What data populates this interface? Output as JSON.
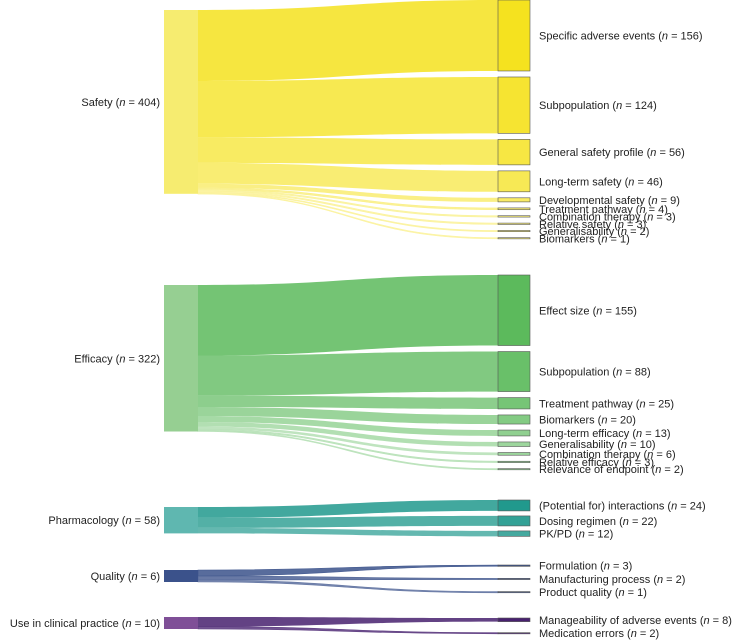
{
  "chart_data": {
    "type": "sankey",
    "title": "",
    "categories": [
      {
        "name": "Safety",
        "n": 404,
        "color": "#f5e21f",
        "source_color": "#f6ec70",
        "children": [
          {
            "name": "Specific adverse events",
            "n": 156
          },
          {
            "name": "Subpopulation",
            "n": 124
          },
          {
            "name": "General safety profile",
            "n": 56
          },
          {
            "name": "Long-term safety",
            "n": 46
          },
          {
            "name": "Developmental safety",
            "n": 9
          },
          {
            "name": "Treatment pathway",
            "n": 4
          },
          {
            "name": "Combination therapy",
            "n": 3
          },
          {
            "name": "Relative safety",
            "n": 3
          },
          {
            "name": "Generalisability",
            "n": 2
          },
          {
            "name": "Biomarkers",
            "n": 1
          }
        ]
      },
      {
        "name": "Efficacy",
        "n": 322,
        "color": "#5cba5c",
        "source_color": "#96cf92",
        "children": [
          {
            "name": "Effect size",
            "n": 155
          },
          {
            "name": "Subpopulation",
            "n": 88
          },
          {
            "name": "Treatment pathway",
            "n": 25
          },
          {
            "name": "Biomarkers",
            "n": 20
          },
          {
            "name": "Long-term efficacy",
            "n": 13
          },
          {
            "name": "Generalisability",
            "n": 10
          },
          {
            "name": "Combination therapy",
            "n": 6
          },
          {
            "name": "Relative efficacy",
            "n": 3
          },
          {
            "name": "Relevance of endpoint",
            "n": 2
          }
        ]
      },
      {
        "name": "Pharmacology",
        "n": 58,
        "color": "#21998d",
        "source_color": "#5fb7b0",
        "children": [
          {
            "name": "(Potential for) interactions",
            "n": 24
          },
          {
            "name": "Dosing regimen",
            "n": 22
          },
          {
            "name": "PK/PD",
            "n": 12
          }
        ]
      },
      {
        "name": "Quality",
        "n": 6,
        "color": "#3b528b",
        "source_color": "#3b528b",
        "children": [
          {
            "name": "Formulation",
            "n": 3
          },
          {
            "name": "Manufacturing process",
            "n": 2
          },
          {
            "name": "Product quality",
            "n": 1
          }
        ]
      },
      {
        "name": "Use in clinical practice",
        "n": 10,
        "color": "#48216f",
        "source_color": "#7f4f97",
        "children": [
          {
            "name": "Manageability of adverse events",
            "n": 8
          },
          {
            "name": "Medication errors",
            "n": 2
          }
        ]
      }
    ]
  }
}
